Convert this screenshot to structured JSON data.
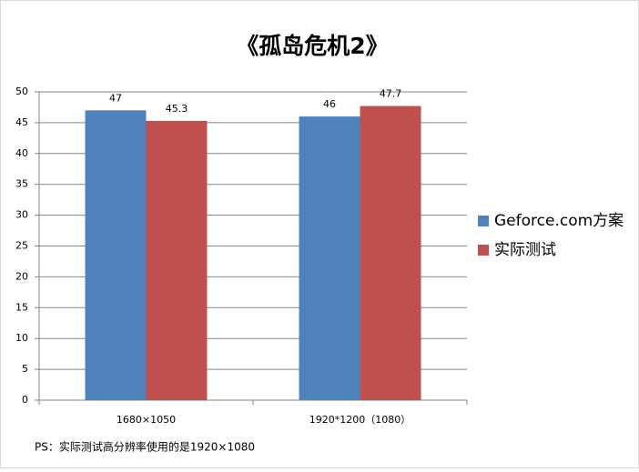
{
  "chart_data": {
    "type": "bar",
    "title": "《孤岛危机2》",
    "categories": [
      "1680×1050",
      "1920*1200（1080）"
    ],
    "series": [
      {
        "name": "Geforce.com方案",
        "color": "#4f81bd",
        "values": [
          47,
          46
        ]
      },
      {
        "name": "实际测试",
        "color": "#c0504d",
        "values": [
          45.3,
          47.7
        ]
      }
    ],
    "ylim": [
      0,
      50
    ],
    "yticks": [
      0,
      5,
      10,
      15,
      20,
      25,
      30,
      35,
      40,
      45,
      50
    ],
    "grid": true,
    "legend": "right",
    "annotation": "PS：实际测试高分辨率使用的是1920×1080"
  }
}
